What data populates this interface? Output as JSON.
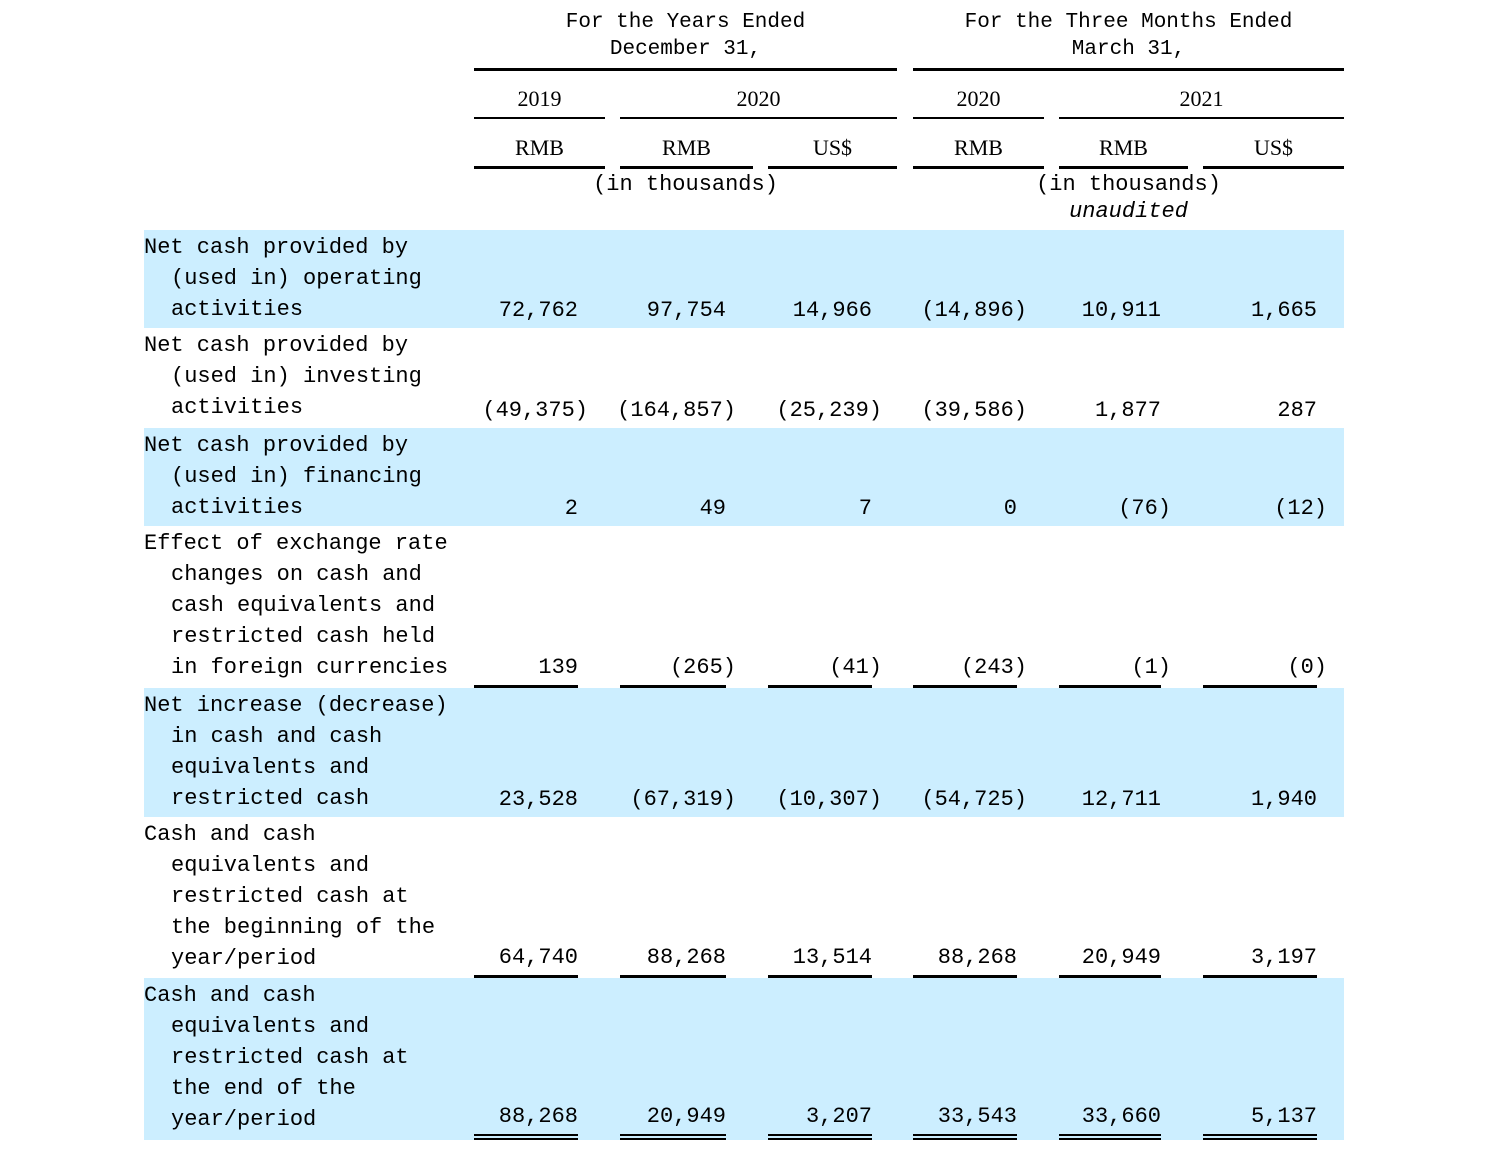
{
  "header": {
    "years_group": [
      "For the Years Ended",
      "December 31,"
    ],
    "months_group": [
      "For the Three Months Ended",
      "March 31,"
    ],
    "years": [
      "2019",
      "2020",
      "2020",
      "2021"
    ],
    "currencies": [
      "RMB",
      "RMB",
      "US$",
      "RMB",
      "RMB",
      "US$"
    ],
    "units_left": "(in thousands)",
    "units_right": "(in thousands)",
    "unaudited": "unaudited"
  },
  "rows": [
    {
      "label": [
        "Net cash provided by",
        "(used in) operating",
        "activities"
      ],
      "values": [
        "72,762",
        "97,754",
        "14,966",
        "(14,896)",
        "10,911",
        "1,665"
      ]
    },
    {
      "label": [
        "Net cash provided by",
        "(used in) investing",
        "activities"
      ],
      "values": [
        "(49,375)",
        "(164,857)",
        "(25,239)",
        "(39,586)",
        "1,877",
        "287"
      ]
    },
    {
      "label": [
        "Net cash provided by",
        "(used in) financing",
        "activities"
      ],
      "values": [
        "2",
        "49",
        "7",
        "0",
        "(76)",
        "(12)"
      ]
    },
    {
      "label": [
        "Effect of exchange rate",
        "changes on cash and",
        "cash equivalents and",
        "restricted cash held",
        "in foreign currencies"
      ],
      "values": [
        "139",
        "(265)",
        "(41)",
        "(243)",
        "(1)",
        "(0)"
      ]
    },
    {
      "label": [
        "Net increase (decrease)",
        "in cash and cash",
        "equivalents and",
        "restricted cash"
      ],
      "values": [
        "23,528",
        "(67,319)",
        "(10,307)",
        "(54,725)",
        "12,711",
        "1,940"
      ]
    },
    {
      "label": [
        "Cash and cash",
        "equivalents and",
        "restricted cash at",
        "the beginning of the",
        "year/period"
      ],
      "values": [
        "64,740",
        "88,268",
        "13,514",
        "88,268",
        "20,949",
        "3,197"
      ]
    },
    {
      "label": [
        "Cash and cash",
        "equivalents and",
        "restricted cash at",
        "the end of the",
        "year/period"
      ],
      "values": [
        "88,268",
        "20,949",
        "3,207",
        "33,543",
        "33,660",
        "5,137"
      ]
    }
  ],
  "colors": {
    "shade": "#cceeff"
  }
}
